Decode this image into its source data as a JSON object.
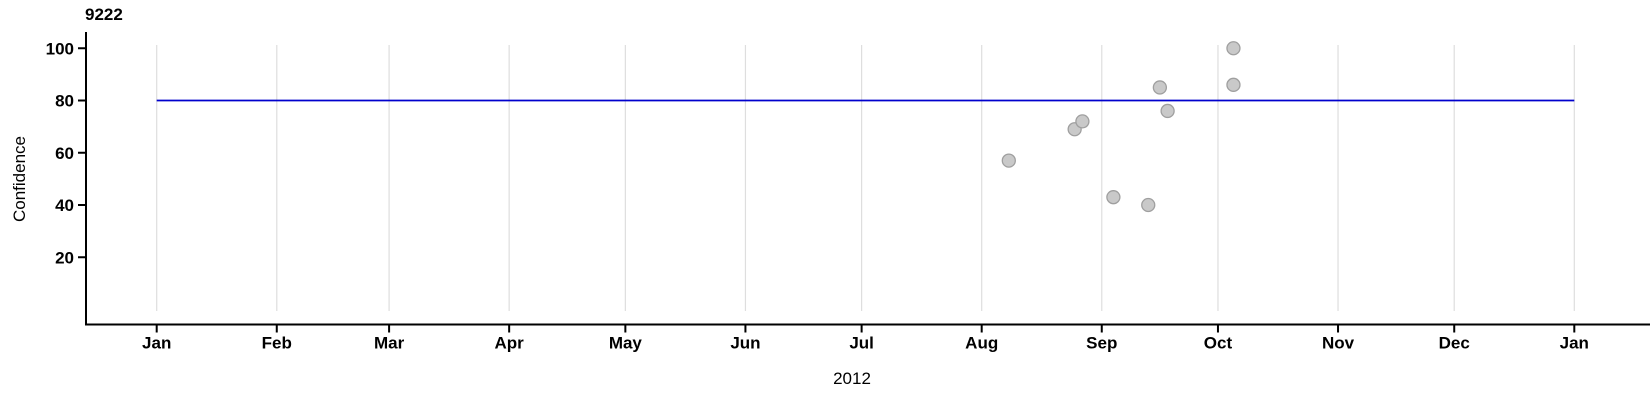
{
  "chart_data": {
    "type": "scatter",
    "title": "9222",
    "ylabel": "Confidence",
    "xlabel": "2012",
    "x_tick_labels": [
      "Jan",
      "Feb",
      "Mar",
      "Apr",
      "May",
      "Jun",
      "Jul",
      "Aug",
      "Sep",
      "Oct",
      "Nov",
      "Dec",
      "Jan"
    ],
    "y_tick_values": [
      100,
      80,
      60,
      40,
      20
    ],
    "ylim": [
      -6,
      106
    ],
    "x_range": "2012-01-01 to 2013-01-01",
    "legend": "none",
    "grid": "vertical light-gray gridline at each month tick",
    "threshold_line": {
      "value": 80,
      "color": "#0000cd"
    },
    "points": [
      {
        "date": "2012-08-08",
        "confidence": 57
      },
      {
        "date": "2012-08-25",
        "confidence": 69
      },
      {
        "date": "2012-08-27",
        "confidence": 72
      },
      {
        "date": "2012-09-04",
        "confidence": 43
      },
      {
        "date": "2012-09-13",
        "confidence": 40
      },
      {
        "date": "2012-09-16",
        "confidence": 85
      },
      {
        "date": "2012-09-18",
        "confidence": 76
      },
      {
        "date": "2012-10-05",
        "confidence": 100
      },
      {
        "date": "2012-10-05",
        "confidence": 86
      }
    ],
    "colors": {
      "point_fill": "#c9c9c9",
      "point_stroke": "#9f9f9f",
      "axis": "#000000",
      "grid": "#dedede",
      "background": "#ffffff"
    }
  }
}
